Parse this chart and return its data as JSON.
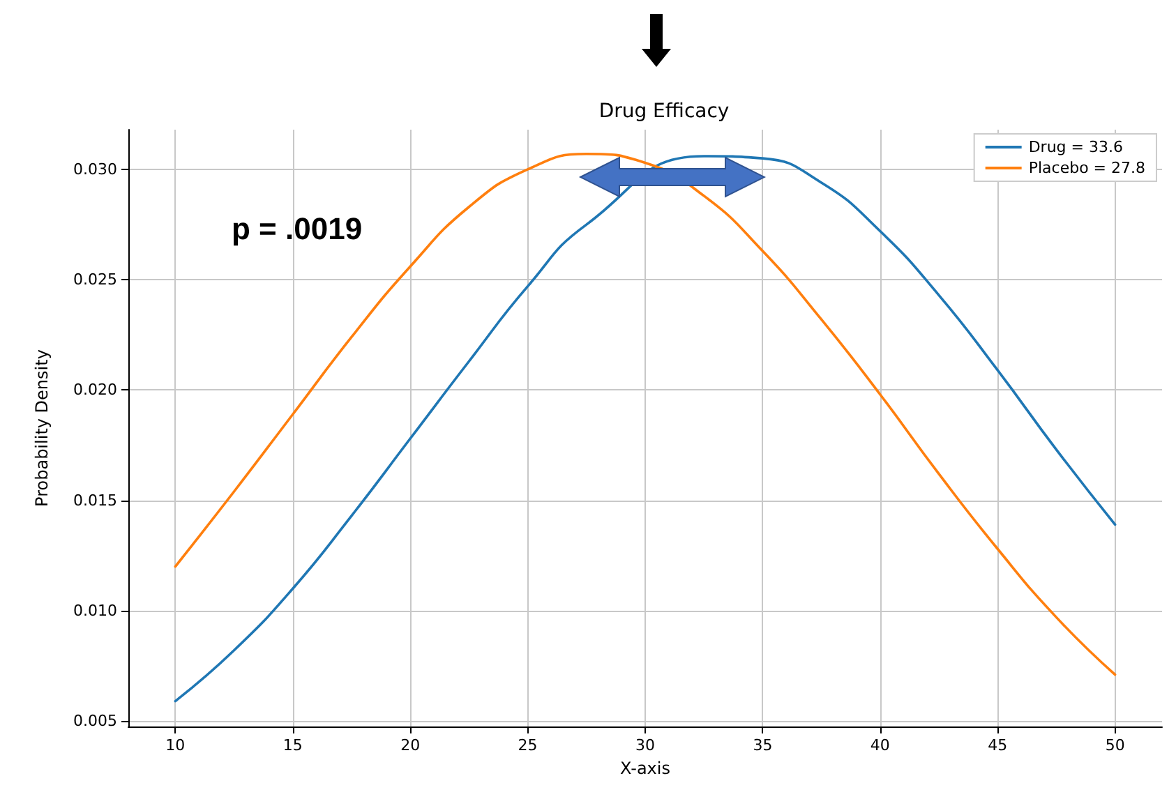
{
  "chart_data": {
    "type": "line",
    "title": "Drug Efficacy",
    "xlabel": "X-axis",
    "ylabel": "Probability Density",
    "x": [
      10,
      12.5,
      15,
      17.5,
      20,
      22.5,
      25,
      27.5,
      30,
      32.5,
      35,
      37.5,
      40,
      42.5,
      45,
      47.5,
      50
    ],
    "series": [
      {
        "name": "Drug = 33.6",
        "color": "#1f77b4",
        "x": [
          10,
          12.5,
          15,
          17.5,
          20,
          22.5,
          25,
          27.5,
          32.5,
          35,
          37.5,
          40,
          42.5,
          45,
          47.5,
          50
        ],
        "values": [
          0.0059,
          0.0082,
          0.011,
          0.0143,
          0.0178,
          0.0213,
          0.0247,
          0.0275,
          0.0306,
          0.0305,
          0.0294,
          0.0272,
          0.0243,
          0.0209,
          0.0173,
          0.0139
        ]
      },
      {
        "name": "Placebo = 27.8",
        "color": "#ff7f0e",
        "values": [
          0.012,
          0.0154,
          0.0189,
          0.0224,
          0.0256,
          0.0283,
          0.03,
          0.0307,
          0.0303,
          0.0288,
          0.0263,
          0.0232,
          0.0198,
          0.0162,
          0.0128,
          0.0097,
          0.0071
        ]
      }
    ],
    "xlim": [
      8,
      52
    ],
    "xticks": [
      10,
      15,
      20,
      25,
      30,
      35,
      40,
      45,
      50
    ],
    "ylim": [
      0.00475,
      0.0318
    ],
    "yticks": [
      {
        "value": 0.005,
        "label": "0.005"
      },
      {
        "value": 0.01,
        "label": "0.010"
      },
      {
        "value": 0.015,
        "label": "0.015"
      },
      {
        "value": 0.02,
        "label": "0.020"
      },
      {
        "value": 0.025,
        "label": "0.025"
      },
      {
        "value": 0.03,
        "label": "0.030"
      }
    ],
    "annotations": [
      "p = .0019"
    ],
    "grid": true,
    "legend": "top right",
    "marker": "none",
    "line_style": "solid"
  }
}
